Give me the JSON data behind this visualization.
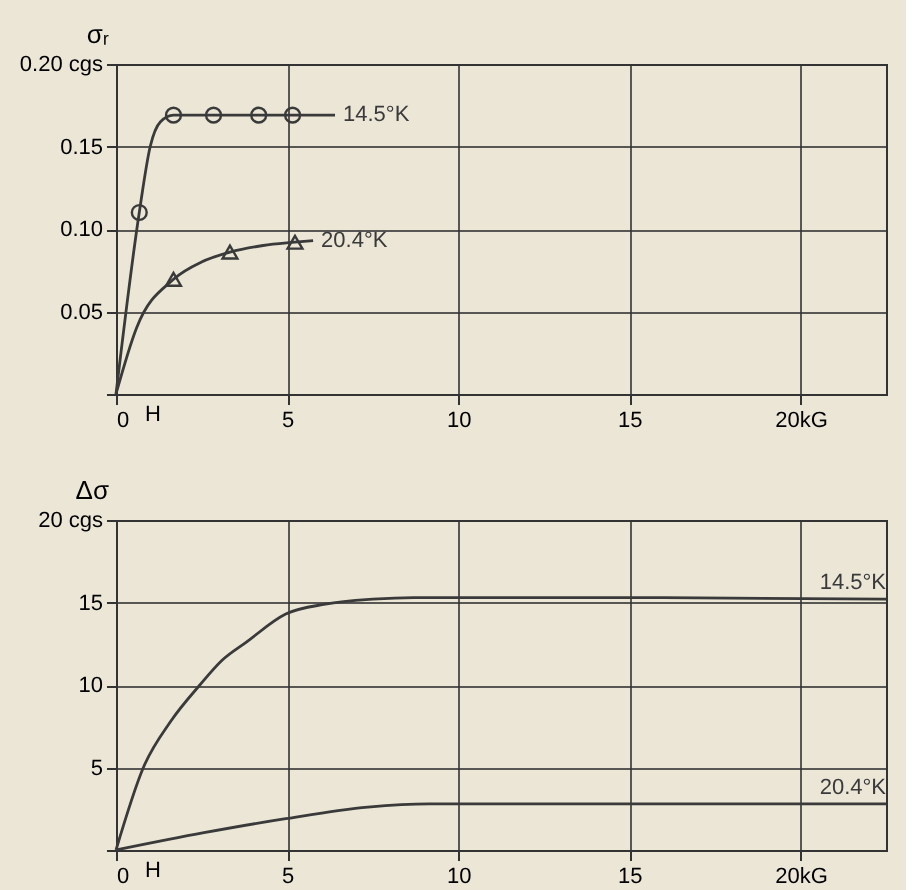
{
  "chart_data": [
    {
      "type": "line",
      "xlabel": "H",
      "ylabel": "σᵣ",
      "xlim": [
        0,
        22.5
      ],
      "ylim": [
        0,
        0.2
      ],
      "xticks": [
        0,
        5,
        10,
        15,
        {
          "value": 20,
          "label": "20kG"
        }
      ],
      "yticks": [
        {
          "value": 0,
          "label": null
        },
        {
          "value": 0.05,
          "label": "0.05"
        },
        {
          "value": 0.1,
          "label": "0.10"
        },
        {
          "value": 0.15,
          "label": "0.15"
        },
        {
          "value": 0.2,
          "label": "0.20 cgs"
        }
      ],
      "grid": true,
      "series": [
        {
          "name": "14.5°K",
          "color": "#3a3a3a",
          "marker": "none",
          "x": [
            0,
            0.68,
            1.0,
            1.3,
            1.68,
            2.85,
            4.17,
            5.16,
            6.4
          ],
          "values": [
            0,
            0.11,
            0.15,
            0.165,
            0.169,
            0.169,
            0.169,
            0.169,
            0.169
          ]
        },
        {
          "type": "scatter",
          "color": "#3a3a3a",
          "marker": "circle",
          "x": [
            0.68,
            1.68,
            2.85,
            4.17,
            5.16
          ],
          "values": [
            0.11,
            0.169,
            0.169,
            0.169,
            0.169
          ]
        },
        {
          "name": "20.4°K",
          "color": "#3a3a3a",
          "marker": "none",
          "x": [
            0,
            0.6,
            1.68,
            2.5,
            3.33,
            4.3,
            5.23,
            5.76
          ],
          "values": [
            0,
            0.04,
            0.0695,
            0.08,
            0.086,
            0.09,
            0.092,
            0.093
          ]
        },
        {
          "type": "scatter",
          "color": "#3a3a3a",
          "marker": "triangle",
          "x": [
            1.68,
            3.33,
            5.23
          ],
          "values": [
            0.0695,
            0.086,
            0.092
          ]
        }
      ]
    },
    {
      "type": "line",
      "xlabel": "H",
      "ylabel": "Δσ",
      "xlim": [
        0,
        22.5
      ],
      "ylim": [
        0,
        20
      ],
      "xticks": [
        0,
        5,
        10,
        15,
        {
          "value": 20,
          "label": "20kG"
        }
      ],
      "yticks": [
        {
          "value": 0,
          "label": null
        },
        5,
        10,
        15,
        {
          "value": 20,
          "label": "20 cgs"
        }
      ],
      "grid": true,
      "series": [
        {
          "name": "14.5°K",
          "color": "#3a3a3a",
          "marker": "none",
          "x": [
            0,
            0.8,
            1.6,
            2.45,
            3.1,
            3.81,
            4.96,
            6.12,
            7.5,
            8.7,
            12,
            16,
            22.5
          ],
          "values": [
            0,
            5,
            7.8,
            10,
            11.5,
            12.6,
            14.3,
            14.9,
            15.2,
            15.3,
            15.3,
            15.3,
            15.2
          ]
        },
        {
          "name": "20.4°K",
          "color": "#3a3a3a",
          "marker": "none",
          "x": [
            0,
            2.57,
            4.96,
            7.36,
            9.15,
            10.6,
            16,
            22.5
          ],
          "values": [
            0,
            1.05,
            1.9,
            2.6,
            2.8,
            2.8,
            2.8,
            2.8
          ]
        }
      ]
    }
  ]
}
